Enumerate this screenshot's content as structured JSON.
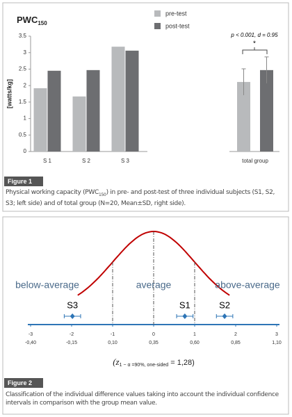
{
  "figures": [
    {
      "label": "Figure 1",
      "caption": [
        "Physical working capacity (PWC",
        "150",
        ") in pre- and post-test of three individual subjects (S1, S2, S3; left side) and of total group (N=20, Mean±SD, right side)."
      ]
    },
    {
      "label": "Figure 2",
      "caption": "Classification of the individual difference values taking into account the individual confidence intervals in comparison with the group mean value."
    }
  ],
  "chart_data": [
    {
      "type": "bar",
      "title": "PWC",
      "title_subscript": "150",
      "y_label": "[watts/kg]",
      "categories": [
        "S 1",
        "S 2",
        "S 3",
        "total group"
      ],
      "series": [
        {
          "name": "pre-test",
          "color": "#b8babc",
          "values": [
            1.92,
            1.67,
            3.18,
            2.11
          ],
          "errors": [
            null,
            null,
            null,
            0.4
          ]
        },
        {
          "name": "post-test",
          "color": "#6d6e71",
          "values": [
            2.45,
            2.47,
            3.06,
            2.47
          ],
          "errors": [
            null,
            null,
            null,
            0.4
          ]
        }
      ],
      "ylim": [
        0,
        3.5
      ],
      "yticks": [
        0,
        0.5,
        1,
        1.5,
        2,
        2.5,
        3,
        3.5
      ],
      "annotations": [
        "p < 0.001, d = 0.95",
        "*"
      ]
    },
    {
      "type": "dotplot",
      "annotations": [
        "below-average",
        "average",
        "above-average"
      ],
      "points": {
        "names": [
          "S3",
          "S1",
          "S2"
        ],
        "x": [
          -1.98,
          0.76,
          1.73
        ],
        "errors": [
          0.2,
          0.2,
          0.2
        ]
      },
      "xlim": [
        -3,
        3
      ],
      "xticks": [
        -3,
        -2,
        -1,
        0,
        1,
        2,
        3
      ],
      "xtick_labels_2": [
        "-0,40",
        "-0,15",
        "0,10",
        "0,35",
        "0,60",
        "0,85",
        "1,10"
      ],
      "formula": [
        "(z",
        "1 − α =90%, one-sided",
        " = 1,28)"
      ],
      "color": "#2e75b6"
    }
  ]
}
